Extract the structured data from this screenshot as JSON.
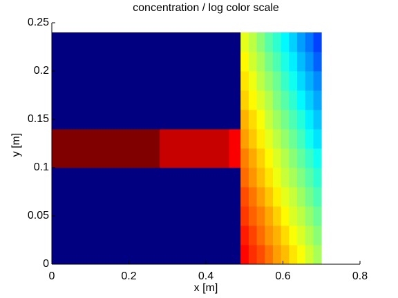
{
  "chart_data": {
    "type": "heatmap",
    "title": "concentration / log color scale",
    "xlabel": "x [m]",
    "ylabel": "y [m]",
    "colormap": "jet",
    "xlim": [
      0,
      0.8
    ],
    "ylim": [
      0,
      0.25
    ],
    "xticks": [
      0,
      0.2,
      0.4,
      0.6,
      0.8
    ],
    "yticks": [
      0,
      0.05,
      0.1,
      0.15,
      0.2,
      0.25
    ],
    "x_edges": [
      0,
      0.28,
      0.46,
      0.49,
      0.511,
      0.532,
      0.553,
      0.574,
      0.595,
      0.616,
      0.637,
      0.658,
      0.679,
      0.7
    ],
    "y_edges": [
      0,
      0.02,
      0.04,
      0.06,
      0.08,
      0.1,
      0.12,
      0.14,
      0.16,
      0.18,
      0.2,
      0.22,
      0.24
    ],
    "values": [
      [
        0,
        0,
        0,
        0.87,
        0.83,
        0.8,
        0.76,
        0.72,
        0.69,
        0.65,
        0.62,
        0.58,
        0.54
      ],
      [
        0,
        0,
        0,
        0.85,
        0.81,
        0.77,
        0.73,
        0.7,
        0.66,
        0.62,
        0.59,
        0.55,
        0.51
      ],
      [
        0,
        0,
        0,
        0.82,
        0.78,
        0.75,
        0.71,
        0.67,
        0.63,
        0.59,
        0.56,
        0.52,
        0.48
      ],
      [
        0,
        0,
        0,
        0.8,
        0.76,
        0.72,
        0.68,
        0.64,
        0.6,
        0.57,
        0.53,
        0.49,
        0.45
      ],
      [
        0,
        0,
        0,
        0.77,
        0.73,
        0.69,
        0.65,
        0.61,
        0.57,
        0.54,
        0.5,
        0.46,
        0.42
      ],
      [
        1,
        0.93,
        0.88,
        0.75,
        0.71,
        0.67,
        0.63,
        0.59,
        0.55,
        0.51,
        0.47,
        0.43,
        0.39
      ],
      [
        1,
        0.93,
        0.88,
        0.72,
        0.68,
        0.64,
        0.6,
        0.56,
        0.52,
        0.48,
        0.44,
        0.39,
        0.35
      ],
      [
        0,
        0,
        0,
        0.7,
        0.66,
        0.62,
        0.57,
        0.53,
        0.49,
        0.45,
        0.41,
        0.36,
        0.32
      ],
      [
        0,
        0,
        0,
        0.67,
        0.63,
        0.59,
        0.55,
        0.5,
        0.46,
        0.42,
        0.37,
        0.33,
        0.29
      ],
      [
        0,
        0,
        0,
        0.65,
        0.61,
        0.56,
        0.52,
        0.48,
        0.43,
        0.39,
        0.34,
        0.3,
        0.26
      ],
      [
        0,
        0,
        0,
        0.63,
        0.58,
        0.54,
        0.49,
        0.45,
        0.4,
        0.36,
        0.31,
        0.27,
        0.22
      ],
      [
        0,
        0,
        0,
        0.6,
        0.56,
        0.51,
        0.46,
        0.42,
        0.37,
        0.33,
        0.28,
        0.24,
        0.19
      ]
    ]
  }
}
